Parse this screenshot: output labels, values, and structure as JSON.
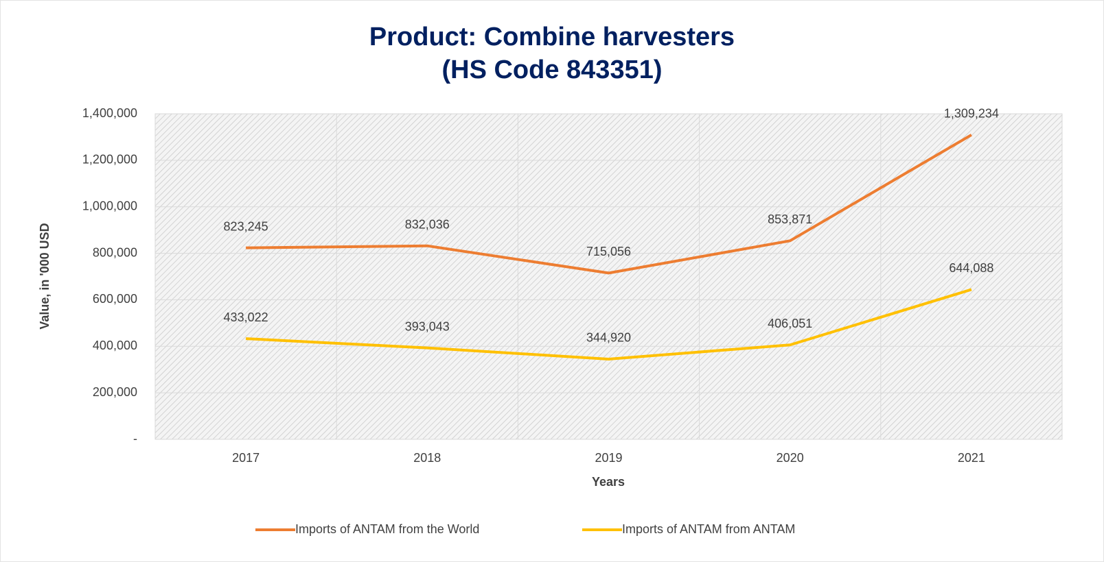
{
  "chart_data": {
    "type": "line",
    "title": "Product: Combine harvesters",
    "subtitle": "(HS Code 843351)",
    "x_label": "Years",
    "y_label": "Value, in '000 USD",
    "categories": [
      "2017",
      "2018",
      "2019",
      "2020",
      "2021"
    ],
    "series": [
      {
        "name": "Imports of ANTAM from the World",
        "color": "#ed7d31",
        "values": [
          823245,
          832036,
          715056,
          853871,
          1309234
        ],
        "value_labels": [
          "823,245",
          "832,036",
          "715,056",
          "853,871",
          "1,309,234"
        ]
      },
      {
        "name": "Imports of ANTAM from ANTAM",
        "color": "#ffc000",
        "values": [
          433022,
          393043,
          344920,
          406051,
          644088
        ],
        "value_labels": [
          "433,022",
          "393,043",
          "344,920",
          "406,051",
          "644,088"
        ]
      }
    ],
    "ylim": [
      0,
      1400000
    ],
    "yticks": [
      {
        "value": 0,
        "label": "-"
      },
      {
        "value": 200000,
        "label": "200,000"
      },
      {
        "value": 400000,
        "label": "400,000"
      },
      {
        "value": 600000,
        "label": "600,000"
      },
      {
        "value": 800000,
        "label": "800,000"
      },
      {
        "value": 1000000,
        "label": "1,000,000"
      },
      {
        "value": 1200000,
        "label": "1,200,000"
      },
      {
        "value": 1400000,
        "label": "1,400,000"
      }
    ],
    "grid": true,
    "legend": "bottom"
  }
}
